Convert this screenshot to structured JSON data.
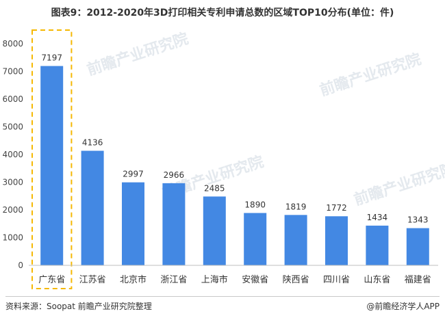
{
  "title": "图表9：2012-2020年3D打印相关专利申请总数的区域TOP10分布(单位：件)",
  "source": "资料来源：Soopat 前瞻产业研究院整理",
  "credit": "@前瞻经济学人APP",
  "watermark": "前瞻产业研究院",
  "colors": {
    "bar": "#4388e3",
    "highlight_box": "#f5b800",
    "axis": "#bfbfbf"
  },
  "chart_data": {
    "type": "bar",
    "title": "图表9：2012-2020年3D打印相关专利申请总数的区域TOP10分布(单位：件)",
    "categories": [
      "广东省",
      "江苏省",
      "北京市",
      "浙江省",
      "上海市",
      "安徽省",
      "陕西省",
      "四川省",
      "山东省",
      "福建省"
    ],
    "values": [
      7197,
      4136,
      2997,
      2966,
      2485,
      1890,
      1819,
      1772,
      1434,
      1343
    ],
    "ylim": [
      0,
      8000
    ],
    "yticks": [
      0,
      1000,
      2000,
      3000,
      4000,
      5000,
      6000,
      7000,
      8000
    ],
    "highlighted_category": "广东省",
    "grid": false,
    "legend": "none",
    "xlabel": "",
    "ylabel": ""
  }
}
